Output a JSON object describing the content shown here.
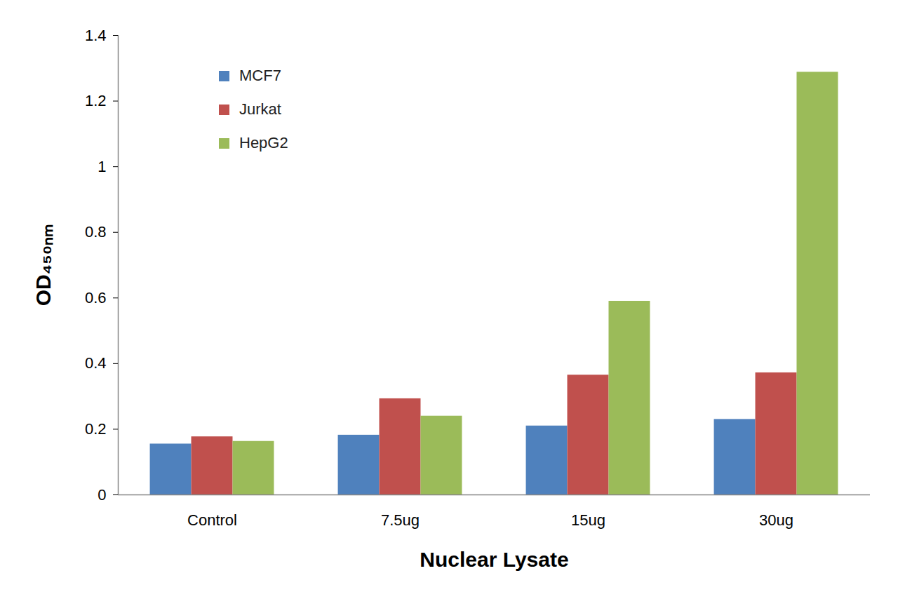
{
  "chart_data": {
    "type": "bar",
    "x_label": "Nuclear Lysate",
    "y_label": "OD₄₅₀ₙₘ",
    "categories": [
      "Control",
      "7.5ug",
      "15ug",
      "30ug"
    ],
    "series": [
      {
        "name": "MCF7",
        "color": "#4f81bd",
        "values": [
          0.155,
          0.182,
          0.21,
          0.23
        ]
      },
      {
        "name": "Jurkat",
        "color": "#c0504d",
        "values": [
          0.177,
          0.293,
          0.365,
          0.372
        ]
      },
      {
        "name": "HepG2",
        "color": "#9bbb59",
        "values": [
          0.163,
          0.24,
          0.59,
          1.288
        ]
      }
    ],
    "ylim": [
      0,
      1.4
    ],
    "yticks": [
      0,
      0.2,
      0.4,
      0.6,
      0.8,
      1,
      1.2,
      1.4
    ],
    "grid": false,
    "legend": "top-left"
  }
}
